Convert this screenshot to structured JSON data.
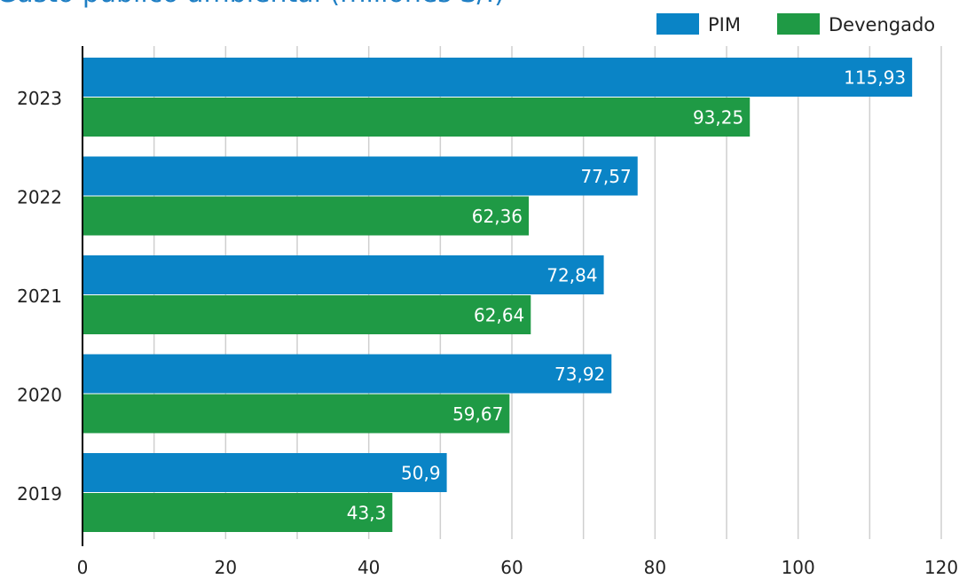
{
  "chart_data": {
    "type": "bar",
    "orientation": "horizontal",
    "title": "Gasto público ambiental (millones S/.)",
    "categories": [
      "2023",
      "2022",
      "2021",
      "2020",
      "2019"
    ],
    "series": [
      {
        "name": "PIM",
        "color": "#0a84c6",
        "values": [
          115.93,
          77.57,
          72.84,
          73.92,
          50.9
        ],
        "labels": [
          "115,93",
          "77,57",
          "72,84",
          "73,92",
          "50,9"
        ]
      },
      {
        "name": "Devengado",
        "color": "#1f9a45",
        "values": [
          93.25,
          62.36,
          62.64,
          59.67,
          43.3
        ],
        "labels": [
          "93,25",
          "62,36",
          "62,64",
          "59,67",
          "43,3"
        ]
      }
    ],
    "xlim": [
      0,
      120
    ],
    "xticks": [
      0,
      20,
      40,
      60,
      80,
      100,
      120
    ],
    "grid": true,
    "legend_position": "top-right"
  }
}
